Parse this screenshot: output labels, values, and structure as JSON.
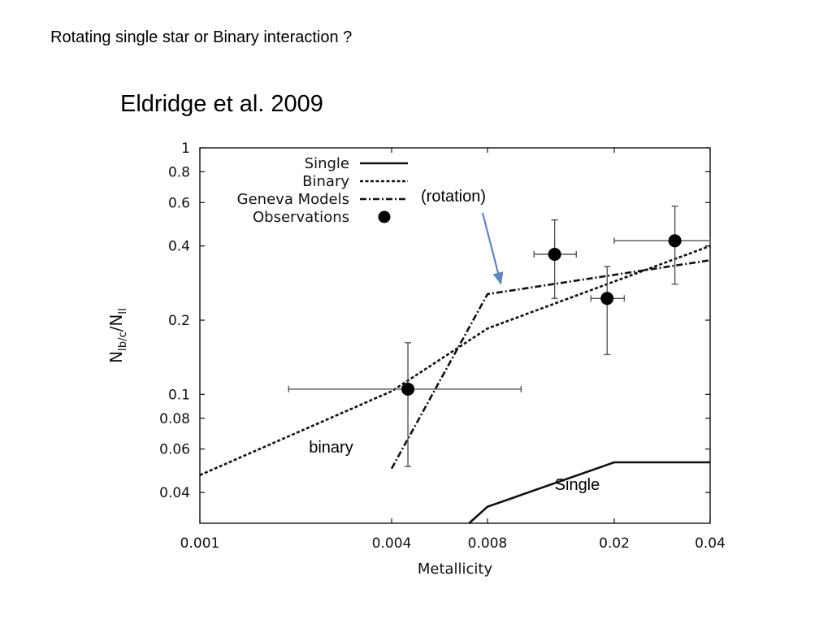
{
  "slide": {
    "title": "Rotating single star or Binary interaction ?",
    "subtitle": "Eldridge et al. 2009"
  },
  "chart_data": {
    "type": "line",
    "xscale": "log",
    "yscale": "log",
    "xlim": [
      0.001,
      0.04
    ],
    "ylim": [
      0.03,
      1
    ],
    "xlabel": "Metallicity",
    "ylabel": "N_Ib/c/N_II",
    "ylabel_parts": {
      "main": "N",
      "sub1": "Ib/c",
      "slash": "/N",
      "sub2": "II"
    },
    "xticks": [
      {
        "value": 0.001,
        "label": "0.001"
      },
      {
        "value": 0.004,
        "label": "0.004"
      },
      {
        "value": 0.008,
        "label": "0.008"
      },
      {
        "value": 0.02,
        "label": "0.02"
      },
      {
        "value": 0.04,
        "label": "0.04"
      }
    ],
    "yticks": [
      {
        "value": 1,
        "label": "1"
      },
      {
        "value": 0.8,
        "label": "0.8"
      },
      {
        "value": 0.6,
        "label": "0.6"
      },
      {
        "value": 0.4,
        "label": "0.4"
      },
      {
        "value": 0.2,
        "label": "0.2"
      },
      {
        "value": 0.1,
        "label": "0.1"
      },
      {
        "value": 0.08,
        "label": "0.08"
      },
      {
        "value": 0.06,
        "label": "0.06"
      },
      {
        "value": 0.04,
        "label": "0.04"
      }
    ],
    "legend_placement": "top-left",
    "series": [
      {
        "name": "Single",
        "style": "solid",
        "x": [
          0.007,
          0.008,
          0.02,
          0.04
        ],
        "y": [
          0.03,
          0.035,
          0.053,
          0.053
        ]
      },
      {
        "name": "Binary",
        "style": "dashed",
        "x": [
          0.001,
          0.004,
          0.008,
          0.04
        ],
        "y": [
          0.047,
          0.103,
          0.185,
          0.4
        ]
      },
      {
        "name": "Geneva Models",
        "style": "dashdot",
        "x": [
          0.004,
          0.008,
          0.04
        ],
        "y": [
          0.05,
          0.255,
          0.35
        ]
      }
    ],
    "observations": {
      "name": "Observations",
      "points": [
        {
          "x": 0.0045,
          "y": 0.105,
          "xerr": [
            0.0019,
            0.0102
          ],
          "yerr": [
            0.051,
            0.162
          ]
        },
        {
          "x": 0.013,
          "y": 0.37,
          "xerr": [
            0.0112,
            0.0152
          ],
          "yerr": [
            0.245,
            0.51
          ]
        },
        {
          "x": 0.019,
          "y": 0.245,
          "xerr": [
            0.0169,
            0.0215
          ],
          "yerr": [
            0.145,
            0.33
          ]
        },
        {
          "x": 0.031,
          "y": 0.42,
          "xerr": [
            0.02,
            0.04
          ],
          "yerr": [
            0.28,
            0.58
          ]
        }
      ]
    },
    "annotations": [
      {
        "text": "(rotation)",
        "arrow_to": {
          "x": 0.0088,
          "y": 0.27
        }
      },
      {
        "text": "binary",
        "x": 0.0022,
        "y": 0.058
      },
      {
        "text": "Single",
        "x": 0.013,
        "y": 0.041
      }
    ]
  },
  "colors": {
    "axis": "#111111",
    "line": "#111111",
    "errorbar": "#555555",
    "arrow": "#5b86c4"
  }
}
